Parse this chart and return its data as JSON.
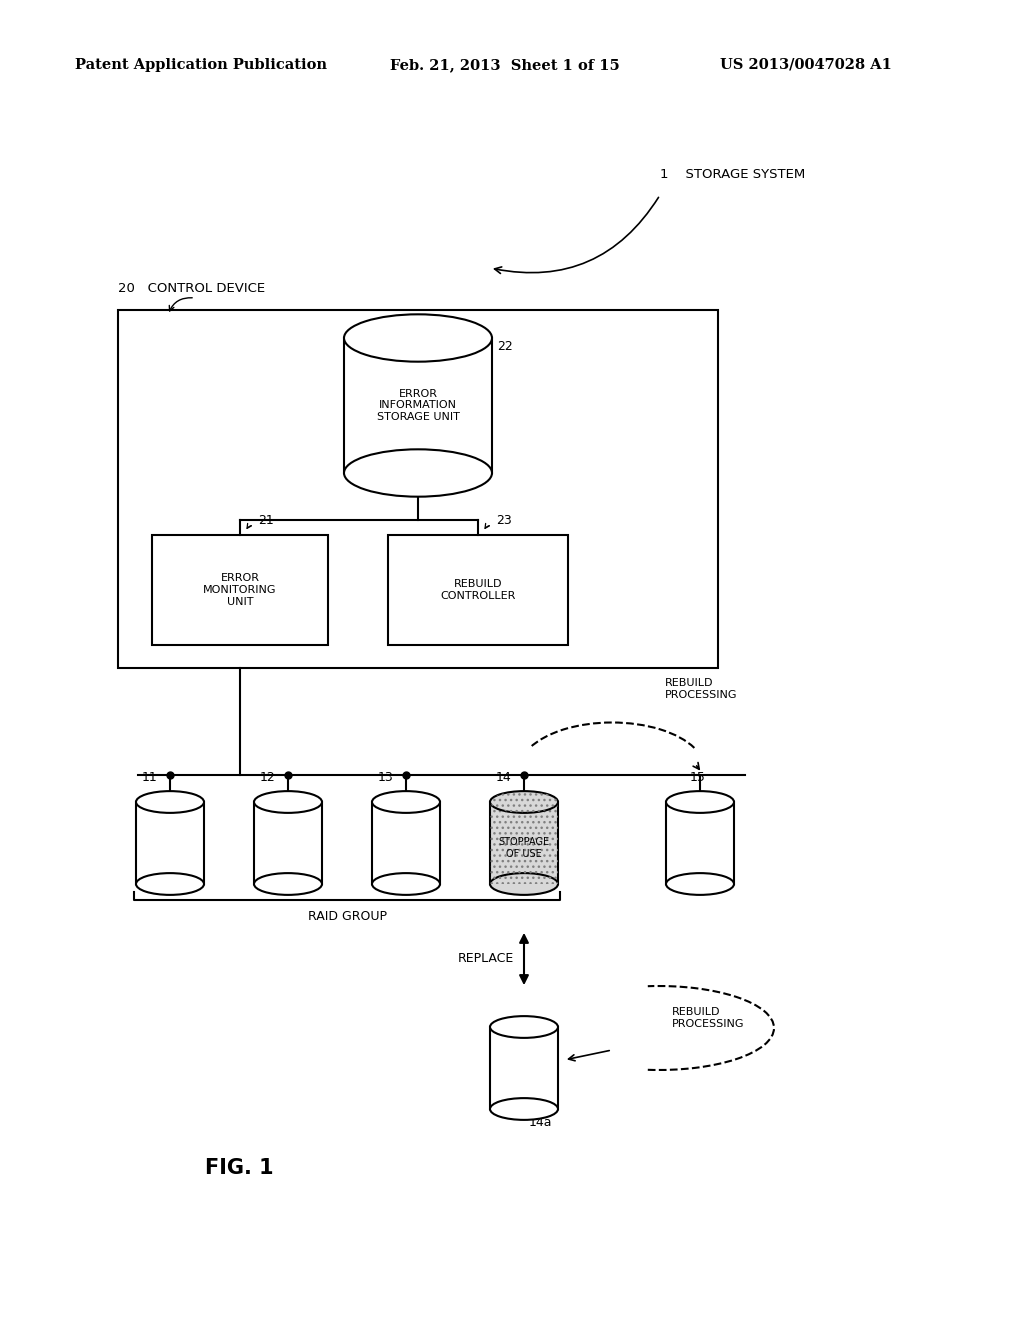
{
  "background_color": "#ffffff",
  "header_left": "Patent Application Publication",
  "header_center": "Feb. 21, 2013  Sheet 1 of 15",
  "header_right": "US 2013/0047028 A1",
  "label_storage_system": "1    STORAGE SYSTEM",
  "label_control_device": "20   CONTROL DEVICE",
  "label_22": "22",
  "label_21": "21",
  "label_23": "23",
  "label_error_info": "ERROR\nINFORMATION\nSTORAGE UNIT",
  "label_error_monitor": "ERROR\nMONITORING\nUNIT",
  "label_rebuild_ctrl": "REBUILD\nCONTROLLER",
  "label_rebuild_proc1": "REBUILD\nPROCESSING",
  "label_rebuild_proc2": "REBUILD\nPROCESSING",
  "label_replace": "REPLACE",
  "label_raid_group": "RAID GROUP",
  "label_stoppage": "STOPPAGE\nOF USE",
  "label_14a": "14a",
  "label_11": "11",
  "label_12": "12",
  "label_13": "13",
  "label_14": "14",
  "label_15": "15",
  "label_fig": "FIG. 1",
  "font_size_header": 10.5,
  "font_size_label": 9.5,
  "font_size_small": 9,
  "font_size_fig": 15,
  "font_size_box": 8
}
